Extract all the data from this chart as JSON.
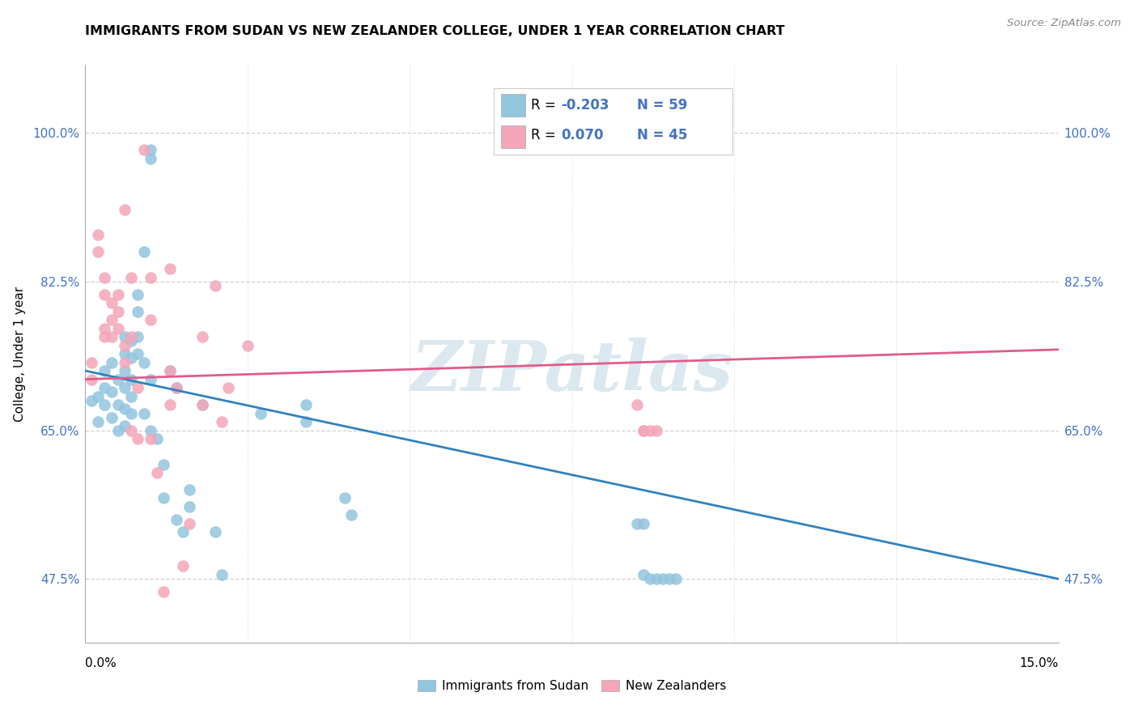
{
  "title": "IMMIGRANTS FROM SUDAN VS NEW ZEALANDER COLLEGE, UNDER 1 YEAR CORRELATION CHART",
  "source": "Source: ZipAtlas.com",
  "ylabel": "College, Under 1 year",
  "ytick_vals": [
    0.475,
    0.65,
    0.825,
    1.0
  ],
  "ytick_labels": [
    "47.5%",
    "65.0%",
    "82.5%",
    "100.0%"
  ],
  "xmin": 0.0,
  "xmax": 0.15,
  "ymin": 0.4,
  "ymax": 1.08,
  "watermark": "ZIPatlas",
  "blue_color": "#92c5de",
  "pink_color": "#f4a6b8",
  "blue_line_color": "#3182bd",
  "pink_line_color": "#e05c8a",
  "blue_scatter_x": [
    0.001,
    0.002,
    0.002,
    0.003,
    0.003,
    0.003,
    0.004,
    0.004,
    0.004,
    0.005,
    0.005,
    0.005,
    0.006,
    0.006,
    0.006,
    0.006,
    0.006,
    0.006,
    0.007,
    0.007,
    0.007,
    0.007,
    0.007,
    0.008,
    0.008,
    0.008,
    0.008,
    0.009,
    0.009,
    0.009,
    0.01,
    0.01,
    0.01,
    0.01,
    0.011,
    0.012,
    0.012,
    0.013,
    0.014,
    0.014,
    0.015,
    0.016,
    0.016,
    0.018,
    0.02,
    0.021,
    0.027,
    0.034,
    0.034,
    0.04,
    0.041,
    0.085,
    0.086,
    0.086,
    0.087,
    0.088,
    0.089,
    0.09,
    0.091
  ],
  "blue_scatter_y": [
    0.685,
    0.66,
    0.69,
    0.7,
    0.68,
    0.72,
    0.73,
    0.695,
    0.665,
    0.71,
    0.68,
    0.65,
    0.76,
    0.74,
    0.72,
    0.7,
    0.675,
    0.655,
    0.755,
    0.735,
    0.71,
    0.69,
    0.67,
    0.81,
    0.79,
    0.76,
    0.74,
    0.86,
    0.73,
    0.67,
    0.98,
    0.97,
    0.71,
    0.65,
    0.64,
    0.61,
    0.57,
    0.72,
    0.7,
    0.545,
    0.53,
    0.58,
    0.56,
    0.68,
    0.53,
    0.48,
    0.67,
    0.68,
    0.66,
    0.57,
    0.55,
    0.54,
    0.54,
    0.48,
    0.475,
    0.475,
    0.475,
    0.475,
    0.475
  ],
  "pink_scatter_x": [
    0.001,
    0.001,
    0.002,
    0.002,
    0.003,
    0.003,
    0.003,
    0.003,
    0.004,
    0.004,
    0.004,
    0.005,
    0.005,
    0.005,
    0.006,
    0.006,
    0.006,
    0.007,
    0.007,
    0.007,
    0.008,
    0.008,
    0.009,
    0.01,
    0.01,
    0.01,
    0.011,
    0.012,
    0.013,
    0.013,
    0.013,
    0.014,
    0.015,
    0.016,
    0.018,
    0.018,
    0.02,
    0.021,
    0.022,
    0.025,
    0.085,
    0.086,
    0.086,
    0.087,
    0.088
  ],
  "pink_scatter_y": [
    0.73,
    0.71,
    0.88,
    0.86,
    0.76,
    0.83,
    0.81,
    0.77,
    0.8,
    0.78,
    0.76,
    0.81,
    0.79,
    0.77,
    0.75,
    0.73,
    0.91,
    0.83,
    0.76,
    0.65,
    0.7,
    0.64,
    0.98,
    0.83,
    0.78,
    0.64,
    0.6,
    0.46,
    0.72,
    0.68,
    0.84,
    0.7,
    0.49,
    0.54,
    0.76,
    0.68,
    0.82,
    0.66,
    0.7,
    0.75,
    0.68,
    0.65,
    0.65,
    0.65,
    0.65
  ],
  "blue_trend_x": [
    0.0,
    0.15
  ],
  "blue_trend_y": [
    0.72,
    0.475
  ],
  "pink_trend_x": [
    0.0,
    0.15
  ],
  "pink_trend_y": [
    0.71,
    0.745
  ],
  "grid_color": "#cccccc",
  "background_color": "#ffffff",
  "legend_r1_black": "R = ",
  "legend_r1_blue": "-0.203",
  "legend_n1": "N = 59",
  "legend_r2_black": "R =  ",
  "legend_r2_blue": "0.070",
  "legend_n2": "N = 45"
}
